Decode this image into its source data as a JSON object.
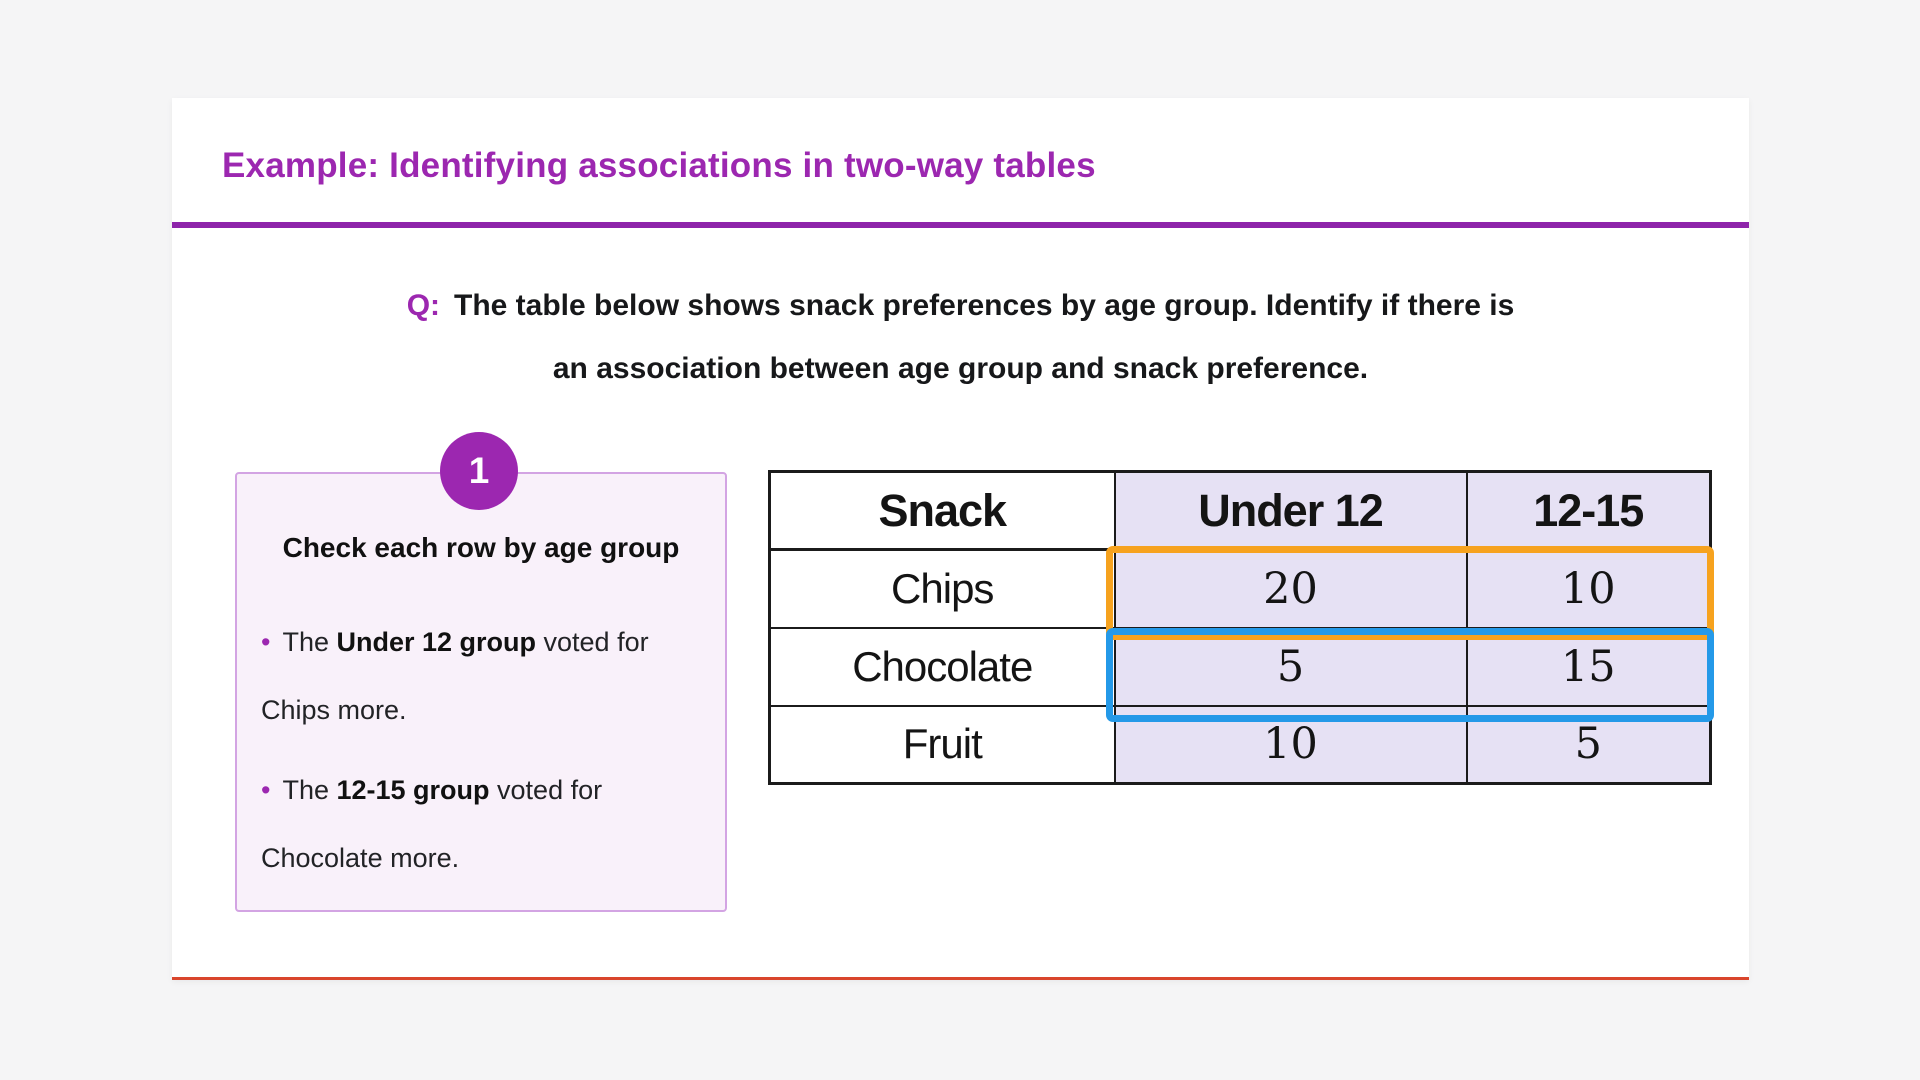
{
  "title": "Example: Identifying associations in two-way tables",
  "question": {
    "prefix": "Q:",
    "line1": "The table below shows snack preferences by age group. Identify if there is",
    "line2": "an association between age group and snack preference."
  },
  "step": {
    "number": "1",
    "heading": "Check each row by age group",
    "bullets": [
      {
        "marker": "•",
        "pre": "The ",
        "bold": "Under 12 group",
        "post": " voted for Chips more."
      },
      {
        "marker": "•",
        "pre": "The ",
        "bold": "12-15 group",
        "post": " voted for Chocolate more."
      }
    ]
  },
  "table": {
    "columns": [
      "Snack",
      "Under 12",
      "12-15"
    ],
    "rows": [
      {
        "label": "Chips",
        "under12": "20",
        "age1215": "10"
      },
      {
        "label": "Chocolate",
        "under12": "5",
        "age1215": "15"
      },
      {
        "label": "Fruit",
        "under12": "10",
        "age1215": "5"
      }
    ],
    "highlights": [
      {
        "row": "Chips",
        "columns": "Under 12, 12-15",
        "color": "#f6a21e",
        "name": "orange"
      },
      {
        "row": "Chocolate",
        "columns": "Under 12, 12-15",
        "color": "#2499e8",
        "name": "blue"
      }
    ]
  },
  "colors": {
    "accent_purple": "#9c27b0",
    "rule_purple": "#8e24aa",
    "panel_bg": "#f9f1fa",
    "panel_border": "#d3a4e3",
    "cell_lavender": "#e6e1f4",
    "highlight_orange": "#f6a21e",
    "highlight_blue": "#2499e8",
    "card_bottom_line": "#d9452c",
    "page_bg": "#f5f5f6",
    "text_dark": "#17181a"
  }
}
